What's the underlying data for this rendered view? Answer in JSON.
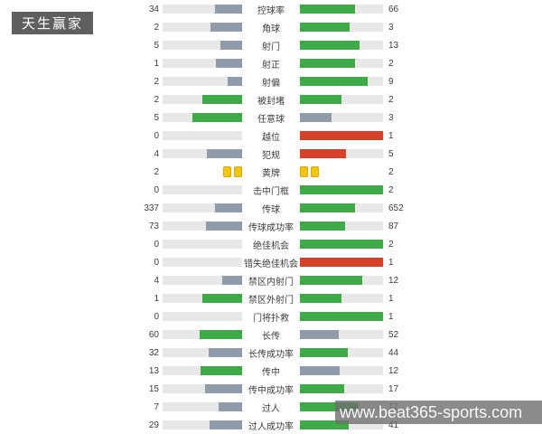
{
  "badge": {
    "label": "天生赢家",
    "bg_color": "#5f5f5f",
    "text_color": "#ffffff"
  },
  "watermark": {
    "text": "www.beat365-sports.com",
    "band_color": "rgba(110,110,110,0.8)"
  },
  "colors": {
    "green": "#3fab47",
    "gray": "#919cab",
    "red": "#d8422a",
    "track": "#e8e8e8",
    "yellow": "#f2c50f",
    "yellow_border": "#d9a905"
  },
  "rows": [
    {
      "label": "控球率",
      "left": "34",
      "right": "66",
      "left_color": "gray",
      "right_color": "green"
    },
    {
      "label": "角球",
      "left": "2",
      "right": "3",
      "left_color": "gray",
      "right_color": "green"
    },
    {
      "label": "射门",
      "left": "5",
      "right": "13",
      "left_color": "gray",
      "right_color": "green"
    },
    {
      "label": "射正",
      "left": "1",
      "right": "2",
      "left_color": "gray",
      "right_color": "green"
    },
    {
      "label": "射偏",
      "left": "2",
      "right": "9",
      "left_color": "gray",
      "right_color": "green"
    },
    {
      "label": "被封堵",
      "left": "2",
      "right": "2",
      "left_color": "green",
      "right_color": "green"
    },
    {
      "label": "任意球",
      "left": "5",
      "right": "3",
      "left_color": "green",
      "right_color": "gray"
    },
    {
      "label": "越位",
      "left": "0",
      "right": "1",
      "left_color": "none",
      "right_color": "red"
    },
    {
      "label": "犯规",
      "left": "4",
      "right": "5",
      "left_color": "gray",
      "right_color": "red"
    },
    {
      "label": "黄牌",
      "left": "2",
      "right": "2",
      "type": "cards",
      "left_cards": 2,
      "right_cards": 2
    },
    {
      "label": "击中门框",
      "left": "0",
      "right": "2",
      "left_color": "none",
      "right_color": "green"
    },
    {
      "label": "传球",
      "left": "337",
      "right": "652",
      "left_color": "gray",
      "right_color": "green"
    },
    {
      "label": "传球成功率",
      "left": "73",
      "right": "87",
      "left_color": "gray",
      "right_color": "green"
    },
    {
      "label": "绝佳机会",
      "left": "0",
      "right": "2",
      "left_color": "none",
      "right_color": "green"
    },
    {
      "label": "错失绝佳机会",
      "left": "0",
      "right": "1",
      "left_color": "none",
      "right_color": "red"
    },
    {
      "label": "禁区内射门",
      "left": "4",
      "right": "12",
      "left_color": "gray",
      "right_color": "green"
    },
    {
      "label": "禁区外射门",
      "left": "1",
      "right": "1",
      "left_color": "green",
      "right_color": "green"
    },
    {
      "label": "门将扑救",
      "left": "0",
      "right": "1",
      "left_color": "none",
      "right_color": "green"
    },
    {
      "label": "长传",
      "left": "60",
      "right": "52",
      "left_color": "green",
      "right_color": "gray"
    },
    {
      "label": "长传成功率",
      "left": "32",
      "right": "44",
      "left_color": "gray",
      "right_color": "green"
    },
    {
      "label": "传中",
      "left": "13",
      "right": "12",
      "left_color": "green",
      "right_color": "gray"
    },
    {
      "label": "传中成功率",
      "left": "15",
      "right": "17",
      "left_color": "gray",
      "right_color": "green"
    },
    {
      "label": "过人",
      "left": "7",
      "right": "17",
      "left_color": "gray",
      "right_color": "green"
    },
    {
      "label": "过人成功率",
      "left": "29",
      "right": "41",
      "left_color": "gray",
      "right_color": "green"
    }
  ],
  "chart_data": {
    "type": "bar",
    "subtype": "paired-horizontal-comparison",
    "title": "",
    "categories": [
      "控球率",
      "角球",
      "射门",
      "射正",
      "射偏",
      "被封堵",
      "任意球",
      "越位",
      "犯规",
      "黄牌",
      "击中门框",
      "传球",
      "传球成功率",
      "绝佳机会",
      "错失绝佳机会",
      "禁区内射门",
      "禁区外射门",
      "门将扑救",
      "长传",
      "长传成功率",
      "传中",
      "传中成功率",
      "过人",
      "过人成功率"
    ],
    "series": [
      {
        "name": "left-team",
        "values": [
          34,
          2,
          5,
          1,
          2,
          2,
          5,
          0,
          4,
          2,
          0,
          337,
          73,
          0,
          0,
          4,
          1,
          0,
          60,
          32,
          13,
          15,
          7,
          29
        ]
      },
      {
        "name": "right-team",
        "values": [
          66,
          3,
          13,
          2,
          9,
          2,
          3,
          1,
          5,
          2,
          2,
          652,
          87,
          2,
          1,
          12,
          1,
          1,
          52,
          44,
          12,
          17,
          17,
          41
        ]
      }
    ],
    "layout_hints": {
      "bar_width_rule": "value / (left + right) of each row's track width",
      "left_bars_right_anchored": true,
      "right_bars_left_anchored": true,
      "yellow_card_row": "黄牌 rendered as two yellow card icons per side instead of bars",
      "color_rule": "green = leading/tied side, gray = trailing side, red = negative stat leader (越位/犯规/错失绝佳机会)"
    }
  }
}
